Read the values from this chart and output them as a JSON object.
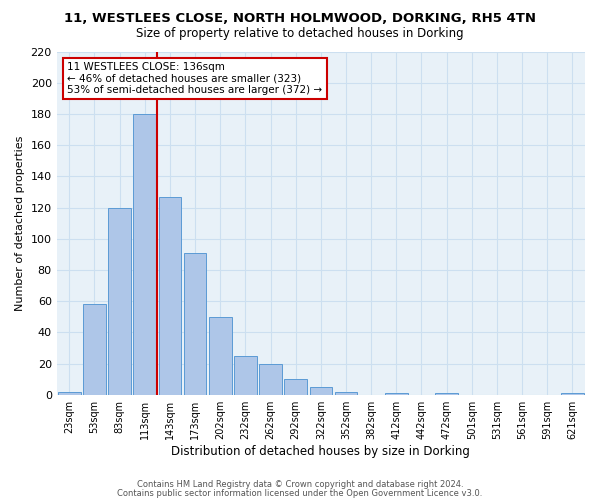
{
  "title": "11, WESTLEES CLOSE, NORTH HOLMWOOD, DORKING, RH5 4TN",
  "subtitle": "Size of property relative to detached houses in Dorking",
  "xlabel": "Distribution of detached houses by size in Dorking",
  "ylabel": "Number of detached properties",
  "bar_labels": [
    "23sqm",
    "53sqm",
    "83sqm",
    "113sqm",
    "143sqm",
    "173sqm",
    "202sqm",
    "232sqm",
    "262sqm",
    "292sqm",
    "322sqm",
    "352sqm",
    "382sqm",
    "412sqm",
    "442sqm",
    "472sqm",
    "501sqm",
    "531sqm",
    "561sqm",
    "591sqm",
    "621sqm"
  ],
  "bin_counts": [
    2,
    58,
    120,
    180,
    127,
    91,
    50,
    25,
    20,
    10,
    5,
    2,
    0,
    1,
    0,
    1,
    0,
    0,
    0,
    0,
    1
  ],
  "bar_color": "#aec6e8",
  "bar_edge_color": "#5b9bd5",
  "vline_index": 4,
  "vline_color": "#cc0000",
  "ylim": [
    0,
    220
  ],
  "yticks": [
    0,
    20,
    40,
    60,
    80,
    100,
    120,
    140,
    160,
    180,
    200,
    220
  ],
  "annotation_title": "11 WESTLEES CLOSE: 136sqm",
  "annotation_line1": "← 46% of detached houses are smaller (323)",
  "annotation_line2": "53% of semi-detached houses are larger (372) →",
  "annotation_box_color": "#ffffff",
  "annotation_box_edge": "#cc0000",
  "footer1": "Contains HM Land Registry data © Crown copyright and database right 2024.",
  "footer2": "Contains public sector information licensed under the Open Government Licence v3.0.",
  "grid_color": "#ccdff0",
  "bg_color": "#e8f1f8",
  "title_fontsize": 9.5,
  "subtitle_fontsize": 8.5,
  "ylabel_fontsize": 8,
  "xlabel_fontsize": 8.5
}
